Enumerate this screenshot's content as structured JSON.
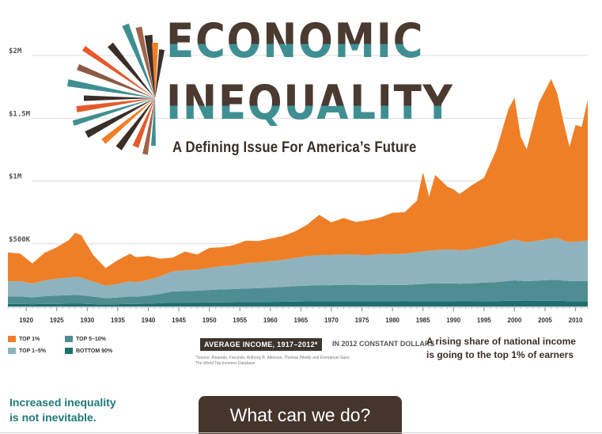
{
  "title_line1": "ECONOMIC",
  "title_line2": "INEQUALITY",
  "subtitle": "A Defining Issue For America’s Future",
  "colors": {
    "top1": "#ef7f27",
    "top1_5": "#8fb3be",
    "top5_10": "#4e8e93",
    "bottom90": "#1f6f71",
    "title_dark": "#4a3a2f",
    "title_teal": "#3f8f92",
    "grid": "#dcdcdc"
  },
  "legend": [
    {
      "label": "TOP 1%",
      "color": "#ef7f27"
    },
    {
      "label": "TOP 5–10%",
      "color": "#4e8e93"
    },
    {
      "label": "TOP 1–5%",
      "color": "#8fb3be"
    },
    {
      "label": "BOTTOM 90%",
      "color": "#1f6f71"
    }
  ],
  "avg_income_label": "AVERAGE INCOME, 1917–2012*",
  "constant_dollars_label": "IN 2012 CONSTANT DOLLARS",
  "source_text": "*Source: Alvaredo, Facundo, Anthony B. Atkinson, Thomas Piketty and Emmanuel Saez, The World Top Incomes Database",
  "rising_line1": "A rising share of national income",
  "rising_line2": "is going to the top 1% of earners",
  "inequality_line1": "Increased inequality",
  "inequality_line2": "is not inevitable.",
  "cta_label": "What can we do?",
  "chart_data": {
    "type": "area",
    "stacked": true,
    "units": "2012 constant dollars",
    "xlim": [
      1917,
      2012
    ],
    "ylim": [
      0,
      2000000
    ],
    "ytick_labels": [
      "$500K",
      "$1M",
      "$1.5M",
      "$2M"
    ],
    "yticks": [
      500000,
      1000000,
      1500000,
      2000000
    ],
    "xtick_labels": [
      "1920",
      "1925",
      "1930",
      "1935",
      "1940",
      "1945",
      "1950",
      "1955",
      "1960",
      "1965",
      "1970",
      "1975",
      "1980",
      "1985",
      "1990",
      "1995",
      "2000",
      "2005",
      "2010"
    ],
    "xticks": [
      1920,
      1925,
      1930,
      1935,
      1940,
      1945,
      1950,
      1955,
      1960,
      1965,
      1970,
      1975,
      1980,
      1985,
      1990,
      1995,
      2000,
      2005,
      2010
    ],
    "grid": "horizontal",
    "x": [
      1917,
      1919,
      1921,
      1923,
      1925,
      1927,
      1928,
      1929,
      1931,
      1933,
      1935,
      1937,
      1938,
      1940,
      1942,
      1944,
      1946,
      1948,
      1950,
      1952,
      1954,
      1956,
      1958,
      1960,
      1962,
      1964,
      1966,
      1968,
      1970,
      1972,
      1974,
      1976,
      1978,
      1980,
      1982,
      1984,
      1985,
      1986,
      1987,
      1989,
      1990,
      1991,
      1993,
      1995,
      1997,
      1999,
      2000,
      2001,
      2002,
      2004,
      2006,
      2007,
      2008,
      2009,
      2010,
      2011,
      2012
    ],
    "series": [
      {
        "name": "BOTTOM 90%",
        "values": [
          20000,
          20000,
          18000,
          20000,
          21000,
          22000,
          22000,
          22000,
          19000,
          16000,
          18000,
          20000,
          20000,
          22000,
          26000,
          30000,
          31000,
          31000,
          32000,
          33000,
          34000,
          36000,
          36000,
          37000,
          38000,
          40000,
          41000,
          42000,
          42000,
          43000,
          43000,
          42000,
          43000,
          42000,
          41000,
          42000,
          42000,
          43000,
          43000,
          43000,
          42000,
          41000,
          41000,
          42000,
          43000,
          45000,
          46000,
          45000,
          44000,
          45000,
          46000,
          46000,
          44000,
          43000,
          42000,
          42000,
          42000
        ]
      },
      {
        "name": "TOP 5–10%",
        "values": [
          60000,
          60000,
          55000,
          62000,
          66000,
          68000,
          70000,
          68000,
          60000,
          50000,
          54000,
          60000,
          58000,
          65000,
          75000,
          90000,
          92000,
          95000,
          100000,
          103000,
          105000,
          108000,
          110000,
          114000,
          118000,
          122000,
          125000,
          128000,
          128000,
          130000,
          130000,
          128000,
          130000,
          130000,
          130000,
          135000,
          137000,
          140000,
          140000,
          142000,
          142000,
          140000,
          143000,
          148000,
          152000,
          158000,
          162000,
          160000,
          158000,
          162000,
          166000,
          166000,
          162000,
          160000,
          160000,
          160000,
          162000
        ]
      },
      {
        "name": "TOP 1–5%",
        "values": [
          120000,
          122000,
          110000,
          125000,
          135000,
          140000,
          145000,
          140000,
          120000,
          100000,
          108000,
          120000,
          115000,
          125000,
          140000,
          160000,
          165000,
          168000,
          175000,
          185000,
          190000,
          200000,
          205000,
          210000,
          215000,
          225000,
          235000,
          240000,
          240000,
          242000,
          240000,
          238000,
          245000,
          245000,
          250000,
          255000,
          260000,
          262000,
          265000,
          270000,
          270000,
          265000,
          272000,
          285000,
          300000,
          320000,
          325000,
          318000,
          310000,
          318000,
          330000,
          335000,
          320000,
          310000,
          315000,
          318000,
          322000
        ]
      },
      {
        "name": "TOP 1%",
        "values": [
          230000,
          220000,
          160000,
          220000,
          250000,
          300000,
          350000,
          340000,
          210000,
          140000,
          190000,
          220000,
          200000,
          190000,
          140000,
          110000,
          150000,
          120000,
          160000,
          150000,
          160000,
          180000,
          170000,
          180000,
          190000,
          210000,
          250000,
          320000,
          260000,
          290000,
          260000,
          280000,
          290000,
          330000,
          330000,
          410000,
          630000,
          430000,
          600000,
          500000,
          480000,
          450000,
          510000,
          550000,
          750000,
          1050000,
          1130000,
          830000,
          740000,
          1100000,
          1270000,
          1150000,
          950000,
          760000,
          930000,
          910000,
          1120000
        ]
      }
    ]
  }
}
